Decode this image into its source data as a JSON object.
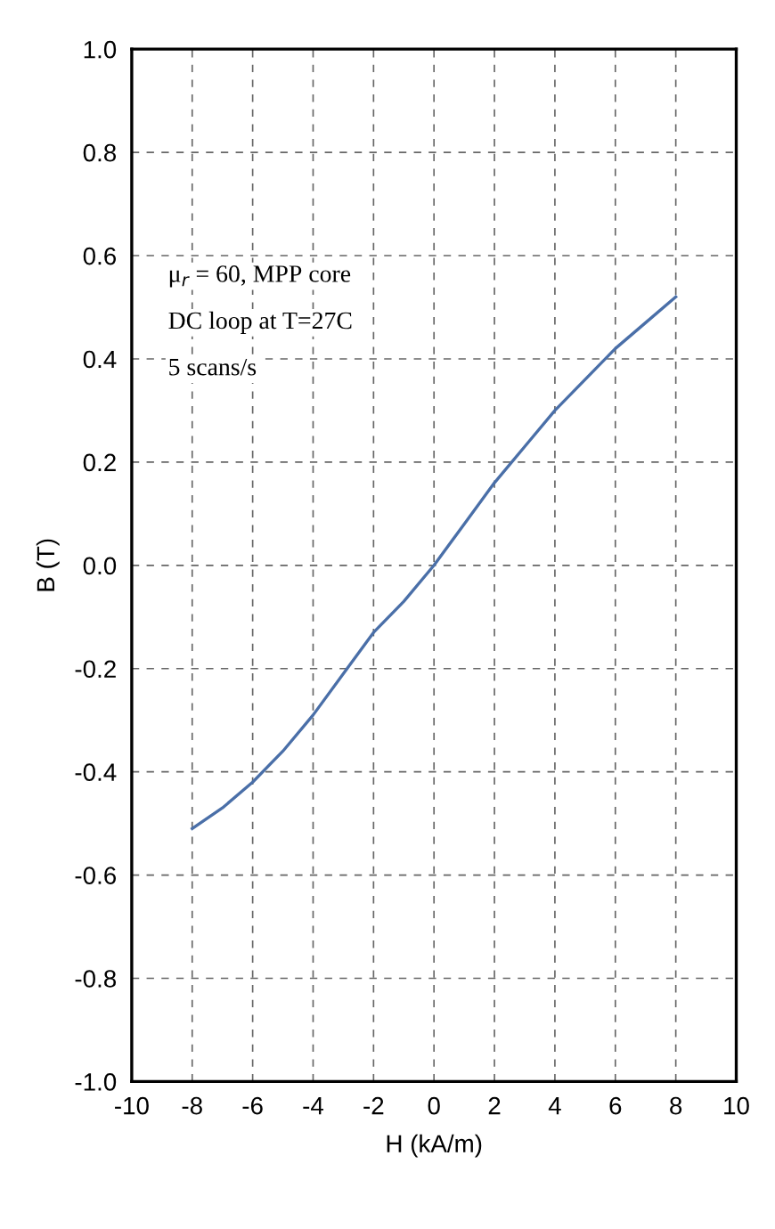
{
  "chart_data": {
    "type": "line",
    "xlabel": "H (kA/m)",
    "ylabel": "B (T)",
    "x": [
      -8,
      -7,
      -6,
      -5,
      -4,
      -3,
      -2,
      -1,
      0,
      1,
      2,
      3,
      4,
      5,
      6,
      7,
      8
    ],
    "series": [
      {
        "color": "#4a6fa8",
        "values": [
          -0.51,
          -0.47,
          -0.42,
          -0.36,
          -0.29,
          -0.21,
          -0.13,
          -0.07,
          0.0,
          0.08,
          0.16,
          0.23,
          0.3,
          0.36,
          0.42,
          0.47,
          0.52
        ]
      }
    ],
    "xlim": [
      -10,
      10
    ],
    "xticks": [
      -10,
      -8,
      -6,
      -4,
      -2,
      0,
      2,
      4,
      6,
      8,
      10
    ],
    "ylim": [
      -1.0,
      1.0
    ],
    "yticks": [
      {
        "value": -1.0,
        "label": "-1.0"
      },
      {
        "value": -0.8,
        "label": "-0.8"
      },
      {
        "value": -0.6,
        "label": "-0.6"
      },
      {
        "value": -0.4,
        "label": "-0.4"
      },
      {
        "value": -0.2,
        "label": "-0.2"
      },
      {
        "value": 0.0,
        "label": "0.0"
      },
      {
        "value": 0.2,
        "label": "0.2"
      },
      {
        "value": 0.4,
        "label": "0.4"
      },
      {
        "value": 0.6,
        "label": "0.6"
      },
      {
        "value": 0.8,
        "label": "0.8"
      },
      {
        "value": 1.0,
        "label": "1.0"
      }
    ],
    "grid": true,
    "line_style": "solid",
    "marker": "none",
    "annotations": [
      "μ$_{r}$ = 60, MPP core",
      "DC loop at T=27C",
      "5 scans/s"
    ]
  }
}
